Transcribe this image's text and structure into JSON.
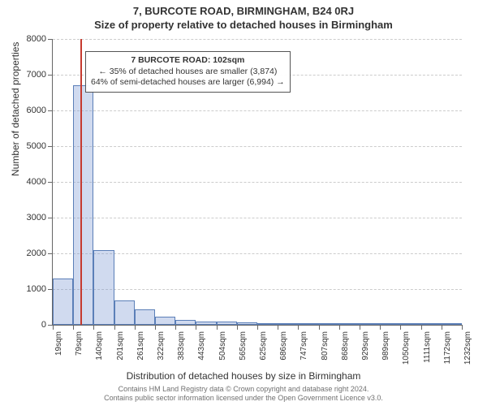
{
  "title_main": "7, BURCOTE ROAD, BIRMINGHAM, B24 0RJ",
  "title_sub": "Size of property relative to detached houses in Birmingham",
  "y_axis_label": "Number of detached properties",
  "x_axis_label": "Distribution of detached houses by size in Birmingham",
  "footer_line_1": "Contains HM Land Registry data © Crown copyright and database right 2024.",
  "footer_line_2": "Contains public sector information licensed under the Open Government Licence v3.0.",
  "chart": {
    "type": "histogram",
    "ylim": [
      0,
      8000
    ],
    "y_ticks": [
      0,
      1000,
      2000,
      3000,
      4000,
      5000,
      6000,
      7000,
      8000
    ],
    "x_tick_labels": [
      "19sqm",
      "79sqm",
      "140sqm",
      "201sqm",
      "261sqm",
      "322sqm",
      "383sqm",
      "443sqm",
      "504sqm",
      "565sqm",
      "625sqm",
      "686sqm",
      "747sqm",
      "807sqm",
      "868sqm",
      "929sqm",
      "989sqm",
      "1050sqm",
      "1111sqm",
      "1172sqm",
      "1232sqm"
    ],
    "bars": [
      1300,
      6700,
      2100,
      680,
      430,
      220,
      140,
      100,
      80,
      60,
      40,
      30,
      20,
      15,
      10,
      8,
      6,
      5,
      4,
      3
    ],
    "marker_bin_index": 1,
    "marker_offset_in_bin": 0.38,
    "colors": {
      "bar_fill": "rgba(120,150,210,0.35)",
      "bar_border": "#5b7fb8",
      "marker": "#c63a2f",
      "grid": "#cccccc",
      "axis": "#666666",
      "text": "#333333",
      "footer_text": "#707070",
      "background": "#ffffff"
    },
    "font": {
      "family": "Arial, Helvetica, sans-serif",
      "title_size": 13,
      "title_weight": 700,
      "axis_label_size": 12,
      "tick_size": 11,
      "x_tick_size": 10,
      "annotation_size": 10.5,
      "footer_size": 9
    }
  },
  "annotation": {
    "line_main": "7 BURCOTE ROAD: 102sqm",
    "line_smaller": "← 35% of detached houses are smaller (3,874)",
    "line_larger": "64% of semi-detached houses are larger (6,994) →"
  }
}
